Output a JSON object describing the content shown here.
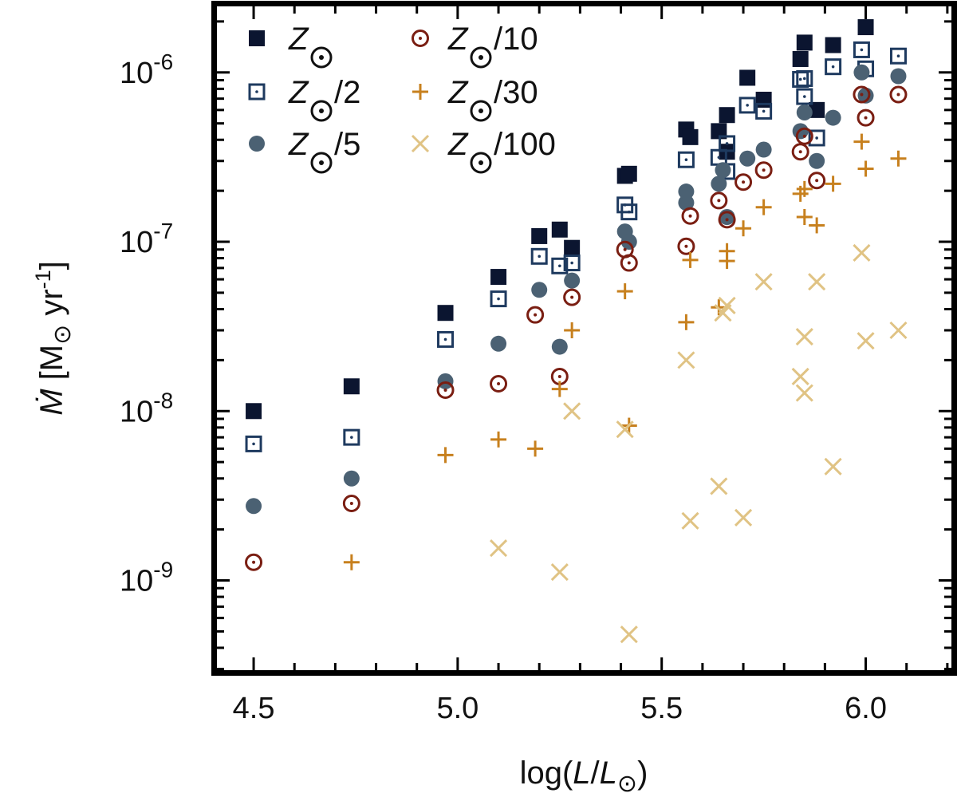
{
  "chart_data": {
    "type": "scatter",
    "title": "",
    "xlabel": {
      "prefix": "log(",
      "var": "L",
      "sep": "/",
      "var2": "L",
      "sub": "⊙",
      "suffix": ")"
    },
    "ylabel": {
      "var": "Ṁ",
      "open": " [M",
      "sub": "⊙",
      "unit": " yr",
      "exp": "-1",
      "close": "]"
    },
    "xlim": [
      4.41,
      6.21
    ],
    "ylim_log10": [
      -9.53,
      -5.61
    ],
    "yscale": "log",
    "xticks": [
      {
        "v": 4.5,
        "label": "4.5"
      },
      {
        "v": 5.0,
        "label": "5.0"
      },
      {
        "v": 5.5,
        "label": "5.5"
      },
      {
        "v": 6.0,
        "label": "6.0"
      }
    ],
    "yticks": [
      {
        "v": -9,
        "base": "10",
        "exp": "-9"
      },
      {
        "v": -8,
        "base": "10",
        "exp": "-8"
      },
      {
        "v": -7,
        "base": "10",
        "exp": "-7"
      },
      {
        "v": -6,
        "base": "10",
        "exp": "-6"
      }
    ],
    "legend_position": "top-left",
    "series": [
      {
        "name": "Z⊙",
        "label_var": "Z",
        "label_suffix": "",
        "marker": "filled-square",
        "color": "#0b1530",
        "points": [
          [
            4.5,
            1e-08
          ],
          [
            4.74,
            1.4e-08
          ],
          [
            4.97,
            3.8e-08
          ],
          [
            5.1,
            6.2e-08
          ],
          [
            5.2,
            1.08e-07
          ],
          [
            5.25,
            1.18e-07
          ],
          [
            5.28,
            9.2e-08
          ],
          [
            5.41,
            2.45e-07
          ],
          [
            5.42,
            2.52e-07
          ],
          [
            5.56,
            4.6e-07
          ],
          [
            5.57,
            4.15e-07
          ],
          [
            5.64,
            4.5e-07
          ],
          [
            5.66,
            5.6e-07
          ],
          [
            5.66,
            3.4e-07
          ],
          [
            5.71,
            9.3e-07
          ],
          [
            5.75,
            6.9e-07
          ],
          [
            5.84,
            1.2e-06
          ],
          [
            5.85,
            1.5e-06
          ],
          [
            5.88,
            6e-07
          ],
          [
            5.92,
            1.45e-06
          ],
          [
            6.0,
            1.85e-06
          ]
        ]
      },
      {
        "name": "Z⊙/2",
        "label_var": "Z",
        "label_suffix": "/2",
        "marker": "open-square-dot",
        "color": "#1e3a5f",
        "points": [
          [
            4.5,
            6.4e-09
          ],
          [
            4.74,
            7e-09
          ],
          [
            4.97,
            2.65e-08
          ],
          [
            5.1,
            4.6e-08
          ],
          [
            5.2,
            8.2e-08
          ],
          [
            5.25,
            7.2e-08
          ],
          [
            5.28,
            7.5e-08
          ],
          [
            5.41,
            1.65e-07
          ],
          [
            5.42,
            1.5e-07
          ],
          [
            5.56,
            3.05e-07
          ],
          [
            5.64,
            3.15e-07
          ],
          [
            5.66,
            2.6e-07
          ],
          [
            5.66,
            3.8e-07
          ],
          [
            5.71,
            6.4e-07
          ],
          [
            5.75,
            5.9e-07
          ],
          [
            5.84,
            9.1e-07
          ],
          [
            5.85,
            7.2e-07
          ],
          [
            5.85,
            9.2e-07
          ],
          [
            5.88,
            4.1e-07
          ],
          [
            5.92,
            1.08e-06
          ],
          [
            5.99,
            1.36e-06
          ],
          [
            6.0,
            1.05e-06
          ],
          [
            6.08,
            1.25e-06
          ]
        ]
      },
      {
        "name": "Z⊙/5",
        "label_var": "Z",
        "label_suffix": "/5",
        "marker": "filled-circle",
        "color": "#4b6173",
        "points": [
          [
            4.5,
            2.75e-09
          ],
          [
            4.74,
            4e-09
          ],
          [
            4.97,
            1.5e-08
          ],
          [
            5.1,
            2.5e-08
          ],
          [
            5.2,
            5.2e-08
          ],
          [
            5.25,
            2.4e-08
          ],
          [
            5.28,
            5.9e-08
          ],
          [
            5.41,
            1.15e-07
          ],
          [
            5.42,
            1e-07
          ],
          [
            5.56,
            1.7e-07
          ],
          [
            5.56,
            1.98e-07
          ],
          [
            5.64,
            2.2e-07
          ],
          [
            5.65,
            2.65e-07
          ],
          [
            5.66,
            1.4e-07
          ],
          [
            5.71,
            3.1e-07
          ],
          [
            5.75,
            3.5e-07
          ],
          [
            5.84,
            4.5e-07
          ],
          [
            5.85,
            5.8e-07
          ],
          [
            5.88,
            3e-07
          ],
          [
            5.92,
            5.4e-07
          ],
          [
            5.99,
            1e-06
          ],
          [
            6.0,
            7.3e-07
          ],
          [
            6.08,
            9.5e-07
          ]
        ]
      },
      {
        "name": "Z⊙/10",
        "label_var": "Z",
        "label_suffix": "/10",
        "marker": "open-circle-dot",
        "color": "#7a1e12",
        "points": [
          [
            4.5,
            1.28e-09
          ],
          [
            4.74,
            2.85e-09
          ],
          [
            4.97,
            1.33e-08
          ],
          [
            5.1,
            1.45e-08
          ],
          [
            5.19,
            3.7e-08
          ],
          [
            5.25,
            1.6e-08
          ],
          [
            5.28,
            4.7e-08
          ],
          [
            5.41,
            9e-08
          ],
          [
            5.42,
            7.5e-08
          ],
          [
            5.56,
            9.4e-08
          ],
          [
            5.57,
            1.42e-07
          ],
          [
            5.64,
            1.75e-07
          ],
          [
            5.66,
            1.35e-07
          ],
          [
            5.7,
            2.25e-07
          ],
          [
            5.75,
            2.65e-07
          ],
          [
            5.84,
            3.4e-07
          ],
          [
            5.85,
            4.2e-07
          ],
          [
            5.88,
            2.3e-07
          ],
          [
            5.99,
            7.4e-07
          ],
          [
            6.0,
            5.4e-07
          ],
          [
            6.08,
            7.4e-07
          ]
        ]
      },
      {
        "name": "Z⊙/30",
        "label_var": "Z",
        "label_suffix": "/30",
        "marker": "plus",
        "color": "#c7801e",
        "points": [
          [
            4.74,
            1.28e-09
          ],
          [
            4.97,
            5.5e-09
          ],
          [
            5.1,
            6.8e-09
          ],
          [
            5.19,
            6e-09
          ],
          [
            5.25,
            1.35e-08
          ],
          [
            5.28,
            3e-08
          ],
          [
            5.41,
            5.1e-08
          ],
          [
            5.42,
            8.2e-09
          ],
          [
            5.56,
            3.35e-08
          ],
          [
            5.57,
            7.8e-08
          ],
          [
            5.64,
            4.1e-08
          ],
          [
            5.66,
            7.7e-08
          ],
          [
            5.66,
            8.8e-08
          ],
          [
            5.7,
            1.2e-07
          ],
          [
            5.75,
            1.6e-07
          ],
          [
            5.84,
            1.92e-07
          ],
          [
            5.85,
            1.4e-07
          ],
          [
            5.85,
            2.05e-07
          ],
          [
            5.88,
            1.25e-07
          ],
          [
            5.92,
            2.2e-07
          ],
          [
            5.99,
            3.9e-07
          ],
          [
            6.0,
            2.7e-07
          ],
          [
            6.08,
            3.1e-07
          ]
        ]
      },
      {
        "name": "Z⊙/100",
        "label_var": "Z",
        "label_suffix": "/100",
        "marker": "x",
        "color": "#e0c384",
        "points": [
          [
            5.1,
            1.55e-09
          ],
          [
            5.25,
            1.12e-09
          ],
          [
            5.28,
            1e-08
          ],
          [
            5.41,
            7.8e-09
          ],
          [
            5.42,
            4.8e-10
          ],
          [
            5.56,
            2e-08
          ],
          [
            5.57,
            2.25e-09
          ],
          [
            5.64,
            3.6e-09
          ],
          [
            5.65,
            3.8e-08
          ],
          [
            5.66,
            4.2e-08
          ],
          [
            5.7,
            2.35e-09
          ],
          [
            5.75,
            5.8e-08
          ],
          [
            5.84,
            1.6e-08
          ],
          [
            5.85,
            1.28e-08
          ],
          [
            5.85,
            2.75e-08
          ],
          [
            5.88,
            5.8e-08
          ],
          [
            5.92,
            4.7e-09
          ],
          [
            5.99,
            8.6e-08
          ],
          [
            6.0,
            2.6e-08
          ],
          [
            6.08,
            3e-08
          ]
        ]
      }
    ]
  }
}
